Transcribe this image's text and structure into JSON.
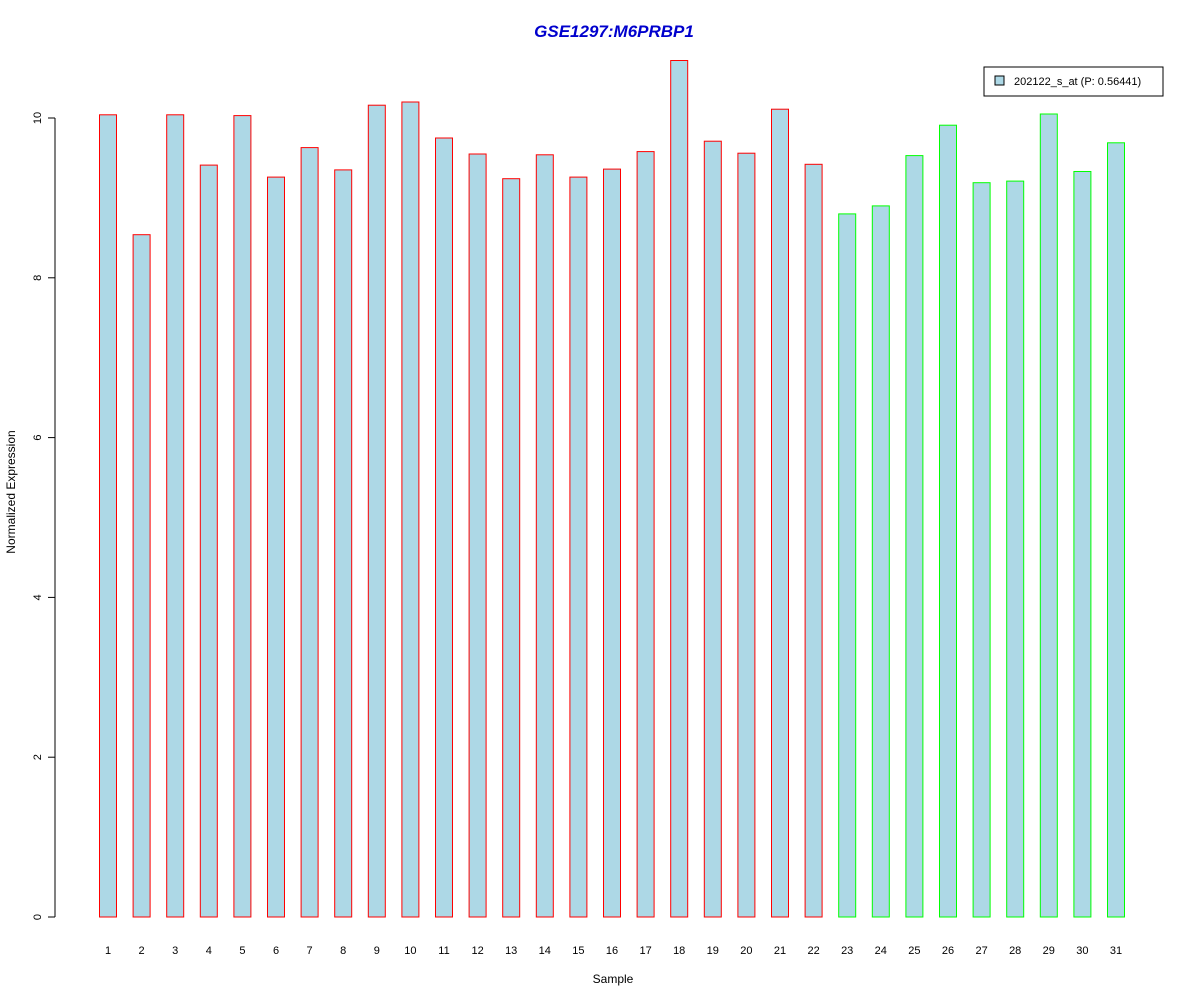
{
  "chart_data": {
    "type": "bar",
    "title": "GSE1297:M6PRBP1",
    "xlabel": "Sample",
    "ylabel": "Normalized Expression",
    "ylim": [
      0,
      10.8
    ],
    "yticks": [
      0,
      2,
      4,
      6,
      8,
      10
    ],
    "categories": [
      "1",
      "2",
      "3",
      "4",
      "5",
      "6",
      "7",
      "8",
      "9",
      "10",
      "11",
      "12",
      "13",
      "14",
      "15",
      "16",
      "17",
      "18",
      "19",
      "20",
      "21",
      "22",
      "23",
      "24",
      "25",
      "26",
      "27",
      "28",
      "29",
      "30",
      "31"
    ],
    "values": [
      10.04,
      8.54,
      10.04,
      9.41,
      10.03,
      9.26,
      9.63,
      9.35,
      10.16,
      10.2,
      9.75,
      9.55,
      9.24,
      9.54,
      9.26,
      9.36,
      9.58,
      10.72,
      9.71,
      9.56,
      10.11,
      9.42,
      8.8,
      8.9,
      9.53,
      9.91,
      9.19,
      9.21,
      10.05,
      9.33,
      9.69
    ],
    "groups": [
      "red",
      "red",
      "red",
      "red",
      "red",
      "red",
      "red",
      "red",
      "red",
      "red",
      "red",
      "red",
      "red",
      "red",
      "red",
      "red",
      "red",
      "red",
      "red",
      "red",
      "red",
      "red",
      "green",
      "green",
      "green",
      "green",
      "green",
      "green",
      "green",
      "green",
      "green"
    ],
    "fill_color": "#add8e6",
    "group_colors": {
      "red": "#ff0000",
      "green": "#00ff00"
    },
    "title_color": "#0000cd",
    "legend": {
      "position": "top-right",
      "entries": [
        {
          "label": "202122_s_at (P: 0.56441)",
          "color": "#add8e6"
        }
      ]
    },
    "grid": false
  }
}
